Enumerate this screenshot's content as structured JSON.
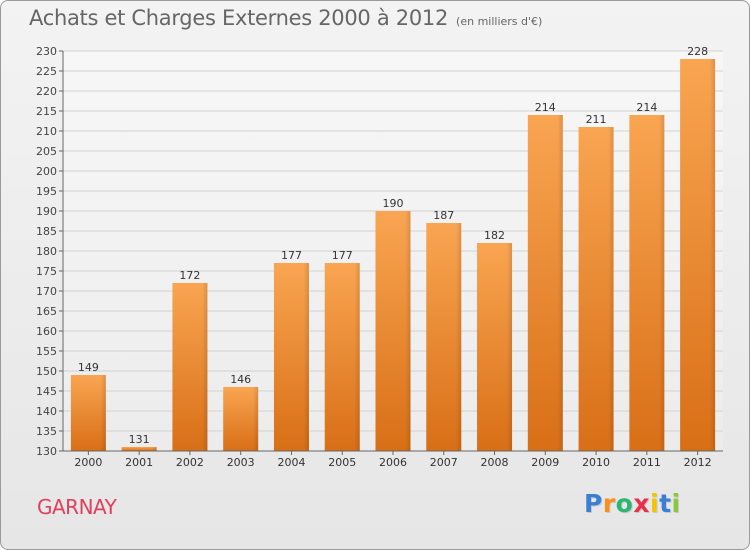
{
  "title": "Achats et Charges Externes 2000 à 2012",
  "unit": "(en milliers d'€)",
  "location": "GARNAY",
  "logo": {
    "letters": [
      {
        "ch": "P",
        "color": "#3a7fd5"
      },
      {
        "ch": "r",
        "color": "#ff8c1a"
      },
      {
        "ch": "o",
        "color": "#2bb673"
      },
      {
        "ch": "x",
        "color": "#e8304a"
      },
      {
        "ch": "i",
        "color": "#f5c400"
      },
      {
        "ch": "t",
        "color": "#3a7fd5"
      },
      {
        "ch": "i",
        "color": "#8dc63f"
      }
    ]
  },
  "chart_data": {
    "type": "bar",
    "categories": [
      "2000",
      "2001",
      "2002",
      "2003",
      "2004",
      "2005",
      "2006",
      "2007",
      "2008",
      "2009",
      "2010",
      "2011",
      "2012"
    ],
    "values": [
      149,
      131,
      172,
      146,
      177,
      177,
      190,
      187,
      182,
      214,
      211,
      214,
      228
    ],
    "ylim": [
      130,
      230
    ],
    "yticks": [
      130,
      135,
      140,
      145,
      150,
      155,
      160,
      165,
      170,
      175,
      180,
      185,
      190,
      195,
      200,
      205,
      210,
      215,
      220,
      225,
      230
    ],
    "grid": true,
    "bar_color": "#f0913a",
    "legend": "none"
  }
}
